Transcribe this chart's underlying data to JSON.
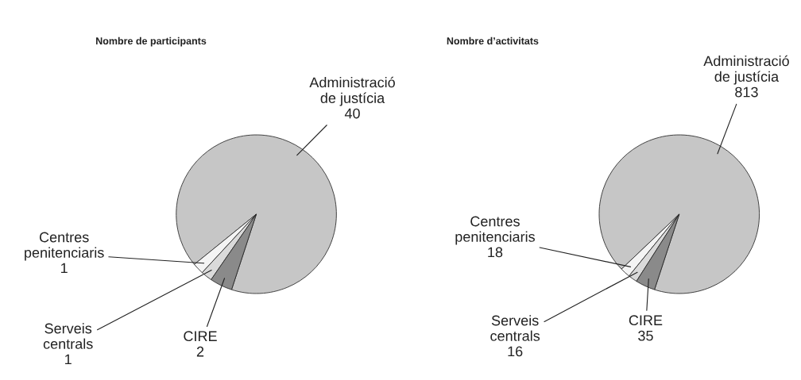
{
  "chart_data": [
    {
      "type": "pie",
      "title": "Nombre de participants",
      "categories": [
        "Administració\nde justícia",
        "Centres\npenitenciaris",
        "Serveis\ncentrals",
        "CIRE"
      ],
      "values": [
        40,
        1,
        1,
        2
      ],
      "colors": [
        "#c6c6c6",
        "#f4f4f4",
        "#dadada",
        "#8a8a8a"
      ],
      "data_labels": true
    },
    {
      "type": "pie",
      "title": "Nombre d’activitats",
      "categories": [
        "Administració\nde justícia",
        "Centres\npenitenciaris",
        "Serveis\ncentrals",
        "CIRE"
      ],
      "values": [
        813,
        18,
        16,
        35
      ],
      "colors": [
        "#c6c6c6",
        "#f4f4f4",
        "#dadada",
        "#8a8a8a"
      ],
      "data_labels": true
    }
  ]
}
